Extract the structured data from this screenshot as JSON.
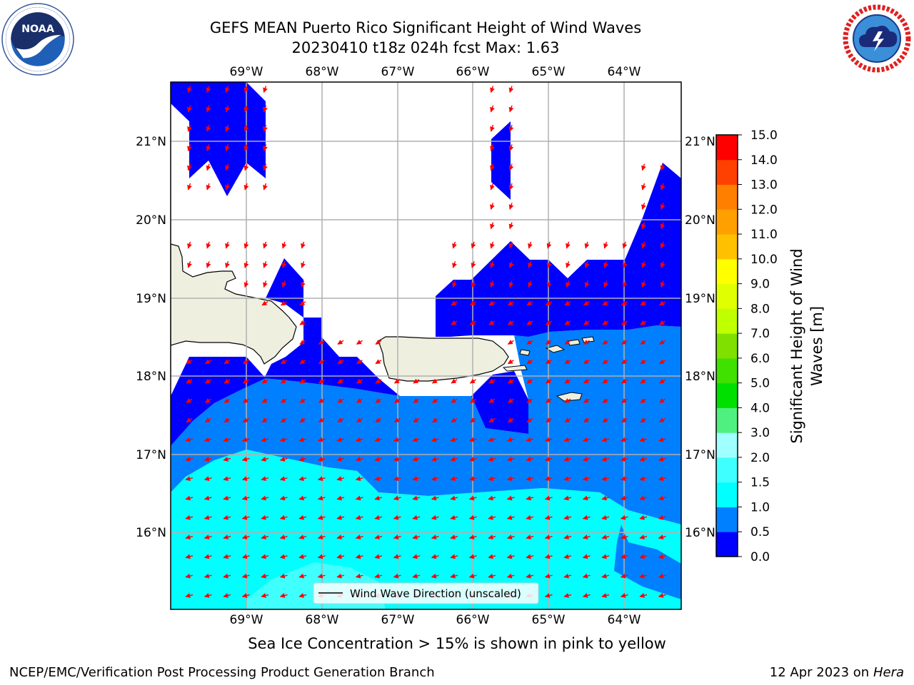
{
  "header": {
    "title_line1": "GEFS MEAN Puerto Rico Significant Height of Wind Waves",
    "title_line2": "20230410 t18z 024h fcst   Max: 1.63"
  },
  "logos": {
    "left": {
      "name": "noaa-logo",
      "text": "NOAA"
    },
    "right": {
      "name": "nws-logo",
      "text": "NATIONAL WEATHER SERVICE"
    }
  },
  "map": {
    "lon_range": [
      -70.0,
      -63.25
    ],
    "lat_range": [
      15.0,
      21.75
    ],
    "lon_ticks": [
      {
        "value": -69,
        "label": "69°W"
      },
      {
        "value": -68,
        "label": "68°W"
      },
      {
        "value": -67,
        "label": "67°W"
      },
      {
        "value": -66,
        "label": "66°W"
      },
      {
        "value": -65,
        "label": "65°W"
      },
      {
        "value": -64,
        "label": "64°W"
      }
    ],
    "lat_ticks": [
      {
        "value": 21,
        "label": "21°N"
      },
      {
        "value": 20,
        "label": "20°N"
      },
      {
        "value": 19,
        "label": "19°N"
      },
      {
        "value": 18,
        "label": "18°N"
      },
      {
        "value": 17,
        "label": "17°N"
      },
      {
        "value": 16,
        "label": "16°N"
      }
    ],
    "grid": true,
    "land_color": "#efefe0",
    "arrow_color": "#ff0000",
    "legend": {
      "label": "Wind Wave Direction (unscaled)",
      "placement": "bottom-center"
    }
  },
  "colorbar": {
    "label": "Significant Height of Wind Waves [m]",
    "ticks": [
      "0.0",
      "0.5",
      "1.0",
      "1.5",
      "2.0",
      "3.0",
      "4.0",
      "5.0",
      "6.0",
      "7.0",
      "8.0",
      "9.0",
      "10.0",
      "11.0",
      "12.0",
      "13.0",
      "14.0",
      "15.0"
    ],
    "colors": [
      "#0000ff",
      "#0080ff",
      "#00ffff",
      "#40ffff",
      "#a0ffff",
      "#50f080",
      "#00e000",
      "#40e000",
      "#80e000",
      "#c0ff00",
      "#e0ff00",
      "#ffff00",
      "#ffc000",
      "#ffa000",
      "#ff8000",
      "#ff4000",
      "#ff0000"
    ]
  },
  "subtitle": "Sea Ice Concentration > 15% is shown in pink to yellow",
  "footer": {
    "left": "NCEP/EMC/Verification Post Processing Product Generation Branch",
    "right_date": "12 Apr 2023 on ",
    "right_host": "Hera"
  }
}
